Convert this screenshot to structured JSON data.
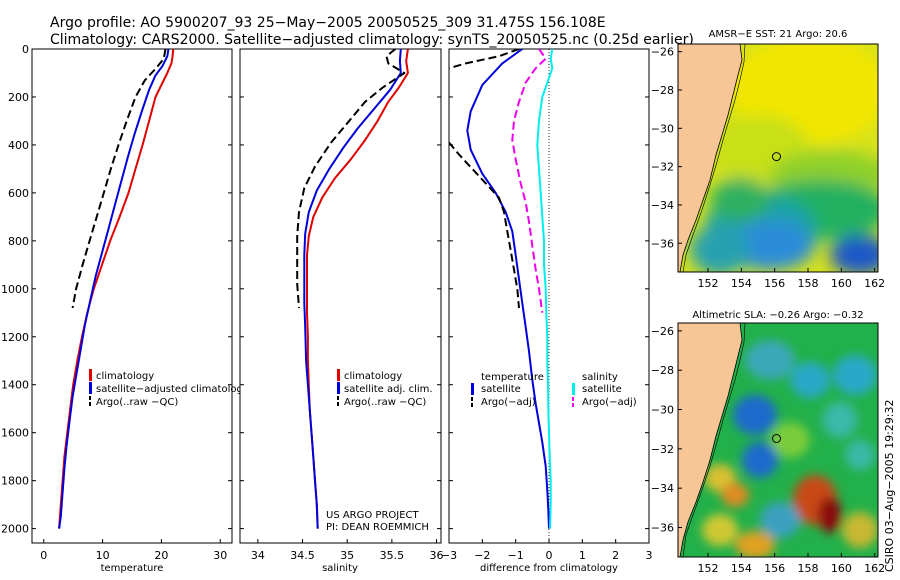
{
  "header": {
    "line1": "Argo profile: AO 5900207_93 25−May−2005 20050525_309 31.475S 156.108E",
    "line2": "Climatology: CARS2000. Satellite−adjusted climatology: synTS_20050525.nc (0.25d earlier)"
  },
  "side_note": "CSIRO 03−Aug−2005 19:29:32",
  "credit": {
    "line1": "US ARGO PROJECT",
    "line2": "PI: DEAN ROEMMICH"
  },
  "colors": {
    "red": "#e00000",
    "blue": "#0000dd",
    "black": "#000000",
    "cyan": "#00eeee",
    "magenta": "#ee00ee",
    "land": "#f8c597"
  },
  "chart_data": [
    {
      "type": "line",
      "id": "temp",
      "xlabel": "temperature",
      "xlim": [
        -2,
        32
      ],
      "xticks": [
        0,
        10,
        20,
        30
      ],
      "ylim": [
        2060,
        0
      ],
      "yticks": [
        0,
        200,
        400,
        600,
        800,
        1000,
        1200,
        1400,
        1600,
        1800,
        2000
      ],
      "legend": [
        "climatology",
        "satellite−adjusted climatology",
        "Argo(..raw −QC)"
      ],
      "series": [
        {
          "name": "climatology",
          "color": "red",
          "dash": "",
          "points": [
            [
              22.0,
              0
            ],
            [
              21.9,
              30
            ],
            [
              21.7,
              60
            ],
            [
              21.0,
              100
            ],
            [
              20.0,
              150
            ],
            [
              19.0,
              200
            ],
            [
              17.9,
              300
            ],
            [
              16.8,
              400
            ],
            [
              15.6,
              500
            ],
            [
              14.4,
              600
            ],
            [
              12.9,
              700
            ],
            [
              11.3,
              800
            ],
            [
              9.9,
              900
            ],
            [
              8.5,
              1000
            ],
            [
              7.4,
              1100
            ],
            [
              6.5,
              1200
            ],
            [
              5.7,
              1300
            ],
            [
              5.0,
              1400
            ],
            [
              4.5,
              1500
            ],
            [
              4.0,
              1600
            ],
            [
              3.5,
              1700
            ],
            [
              3.2,
              1800
            ],
            [
              2.9,
              1900
            ],
            [
              2.6,
              2000
            ]
          ]
        },
        {
          "name": "satellite-adjusted climatology",
          "color": "blue",
          "dash": "",
          "points": [
            [
              21.2,
              0
            ],
            [
              21.0,
              30
            ],
            [
              20.2,
              70
            ],
            [
              19.0,
              110
            ],
            [
              17.9,
              170
            ],
            [
              16.8,
              250
            ],
            [
              15.5,
              350
            ],
            [
              14.3,
              450
            ],
            [
              13.2,
              550
            ],
            [
              12.1,
              650
            ],
            [
              11.0,
              750
            ],
            [
              9.9,
              850
            ],
            [
              8.8,
              950
            ],
            [
              7.9,
              1050
            ],
            [
              7.0,
              1150
            ],
            [
              6.3,
              1250
            ],
            [
              5.6,
              1350
            ],
            [
              4.9,
              1450
            ],
            [
              4.4,
              1550
            ],
            [
              3.9,
              1650
            ],
            [
              3.5,
              1750
            ],
            [
              3.2,
              1850
            ],
            [
              2.9,
              1950
            ],
            [
              2.6,
              2000
            ]
          ]
        },
        {
          "name": "Argo(..raw -QC)",
          "color": "black",
          "dash": "8,4",
          "points": [
            [
              20.7,
              0
            ],
            [
              20.4,
              40
            ],
            [
              19.1,
              80
            ],
            [
              17.2,
              130
            ],
            [
              15.6,
              200
            ],
            [
              14.1,
              300
            ],
            [
              12.7,
              400
            ],
            [
              11.4,
              500
            ],
            [
              10.2,
              600
            ],
            [
              9.0,
              700
            ],
            [
              7.8,
              800
            ],
            [
              6.6,
              900
            ],
            [
              5.5,
              1000
            ],
            [
              4.9,
              1080
            ]
          ]
        }
      ]
    },
    {
      "type": "line",
      "id": "sal",
      "xlabel": "salinity",
      "xlim": [
        33.8,
        36.05
      ],
      "xticks": [
        34,
        34.5,
        35,
        35.5,
        36
      ],
      "xticklabels": [
        "34",
        "34.5",
        "35",
        "35.5",
        "36"
      ],
      "ylim": [
        2060,
        0
      ],
      "legend": [
        "climatology",
        "satellite adj. clim.",
        "Argo(..raw −QC)"
      ],
      "series": [
        {
          "name": "climatology",
          "color": "red",
          "dash": "",
          "points": [
            [
              35.68,
              0
            ],
            [
              35.66,
              50
            ],
            [
              35.68,
              100
            ],
            [
              35.58,
              160
            ],
            [
              35.46,
              220
            ],
            [
              35.34,
              300
            ],
            [
              35.2,
              380
            ],
            [
              35.04,
              460
            ],
            [
              34.86,
              540
            ],
            [
              34.72,
              620
            ],
            [
              34.62,
              700
            ],
            [
              34.57,
              780
            ],
            [
              34.55,
              860
            ],
            [
              34.55,
              940
            ],
            [
              34.55,
              1000
            ],
            [
              34.55,
              1100
            ],
            [
              34.56,
              1200
            ],
            [
              34.56,
              1300
            ],
            [
              34.57,
              1400
            ],
            [
              34.58,
              1500
            ],
            [
              34.6,
              1600
            ],
            [
              34.62,
              1700
            ],
            [
              34.64,
              1800
            ],
            [
              34.66,
              1900
            ],
            [
              34.67,
              2000
            ]
          ]
        },
        {
          "name": "satellite adj. clim.",
          "color": "blue",
          "dash": "",
          "points": [
            [
              35.6,
              0
            ],
            [
              35.59,
              50
            ],
            [
              35.6,
              100
            ],
            [
              35.48,
              170
            ],
            [
              35.3,
              250
            ],
            [
              35.12,
              330
            ],
            [
              34.96,
              410
            ],
            [
              34.8,
              500
            ],
            [
              34.66,
              590
            ],
            [
              34.57,
              680
            ],
            [
              34.53,
              770
            ],
            [
              34.52,
              860
            ],
            [
              34.52,
              960
            ],
            [
              34.52,
              1060
            ],
            [
              34.53,
              1160
            ],
            [
              34.54,
              1300
            ],
            [
              34.56,
              1400
            ],
            [
              34.58,
              1500
            ],
            [
              34.6,
              1600
            ],
            [
              34.62,
              1700
            ],
            [
              34.64,
              1800
            ],
            [
              34.66,
              1900
            ],
            [
              34.67,
              2000
            ]
          ]
        },
        {
          "name": "Argo(..raw -QC)",
          "color": "black",
          "dash": "8,4",
          "points": [
            [
              35.54,
              0
            ],
            [
              35.44,
              30
            ],
            [
              35.46,
              60
            ],
            [
              35.64,
              100
            ],
            [
              35.4,
              160
            ],
            [
              35.2,
              220
            ],
            [
              35.0,
              310
            ],
            [
              34.82,
              390
            ],
            [
              34.64,
              490
            ],
            [
              34.52,
              580
            ],
            [
              34.46,
              680
            ],
            [
              34.44,
              780
            ],
            [
              34.44,
              880
            ],
            [
              34.44,
              980
            ],
            [
              34.46,
              1080
            ]
          ]
        }
      ]
    },
    {
      "type": "line",
      "id": "diff",
      "xlabel": "difference from climatology",
      "xlim": [
        -3,
        3
      ],
      "xticks": [
        -3,
        -2,
        -1,
        0,
        1,
        2,
        3
      ],
      "xticklabels": [
        "−3",
        "−2",
        "−1",
        "0",
        "1",
        "2",
        "3"
      ],
      "ylim": [
        2060,
        0
      ],
      "legend_left": [
        "temperature",
        "satellite",
        "Argo(−adj)"
      ],
      "legend_right": [
        "salinity",
        "satellite",
        "Argo(−adj)"
      ],
      "series": [
        {
          "name": "temperature satellite",
          "color": "blue",
          "dash": "",
          "points": [
            [
              -0.8,
              0
            ],
            [
              -1.4,
              60
            ],
            [
              -2.0,
              150
            ],
            [
              -2.35,
              260
            ],
            [
              -2.45,
              340
            ],
            [
              -2.35,
              420
            ],
            [
              -2.0,
              520
            ],
            [
              -1.6,
              600
            ],
            [
              -1.3,
              680
            ],
            [
              -1.1,
              760
            ],
            [
              -1.0,
              860
            ],
            [
              -0.9,
              960
            ],
            [
              -0.8,
              1060
            ],
            [
              -0.7,
              1160
            ],
            [
              -0.6,
              1260
            ],
            [
              -0.5,
              1380
            ],
            [
              -0.4,
              1480
            ],
            [
              -0.3,
              1560
            ],
            [
              -0.2,
              1640
            ],
            [
              -0.1,
              1740
            ],
            [
              -0.05,
              1840
            ],
            [
              -0.02,
              1920
            ],
            [
              0,
              2000
            ]
          ]
        },
        {
          "name": "temperature Argo(-adj)",
          "color": "black",
          "dash": "8,4",
          "points": [
            [
              -0.9,
              0
            ],
            [
              -1.5,
              30
            ],
            [
              -2.5,
              60
            ],
            [
              -3.0,
              80
            ]
          ]
        },
        {
          "name": "temperature Argo(-adj) deep",
          "color": "black",
          "dash": "8,4",
          "points": [
            [
              -3.0,
              390
            ],
            [
              -2.7,
              440
            ],
            [
              -2.3,
              500
            ],
            [
              -1.9,
              560
            ],
            [
              -1.5,
              620
            ],
            [
              -1.35,
              680
            ],
            [
              -1.25,
              760
            ],
            [
              -1.15,
              840
            ],
            [
              -1.05,
              920
            ],
            [
              -0.95,
              1000
            ],
            [
              -0.9,
              1080
            ]
          ]
        },
        {
          "name": "salinity satellite",
          "color": "cyan",
          "dash": "",
          "points": [
            [
              0.1,
              0
            ],
            [
              0.05,
              40
            ],
            [
              0.1,
              80
            ],
            [
              0,
              120
            ],
            [
              -0.2,
              200
            ],
            [
              -0.3,
              300
            ],
            [
              -0.35,
              400
            ],
            [
              -0.3,
              500
            ],
            [
              -0.25,
              600
            ],
            [
              -0.2,
              700
            ],
            [
              -0.15,
              800
            ],
            [
              -0.15,
              900
            ],
            [
              -0.1,
              1000
            ],
            [
              -0.08,
              1100
            ],
            [
              -0.05,
              1200
            ],
            [
              -0.05,
              1300
            ],
            [
              -0.03,
              1400
            ],
            [
              -0.02,
              1500
            ],
            [
              0,
              1600
            ],
            [
              0.02,
              1700
            ],
            [
              0.05,
              1800
            ],
            [
              0.05,
              1900
            ],
            [
              0.03,
              2000
            ]
          ]
        },
        {
          "name": "salinity Argo(-adj)",
          "color": "magenta",
          "dash": "8,4",
          "points": [
            [
              -0.3,
              0
            ],
            [
              -0.1,
              40
            ],
            [
              -0.4,
              80
            ],
            [
              -0.7,
              140
            ],
            [
              -0.9,
              220
            ],
            [
              -1.05,
              300
            ],
            [
              -1.1,
              380
            ],
            [
              -1.0,
              460
            ],
            [
              -0.85,
              560
            ],
            [
              -0.7,
              640
            ],
            [
              -0.6,
              720
            ],
            [
              -0.5,
              820
            ],
            [
              -0.4,
              920
            ],
            [
              -0.3,
              1000
            ],
            [
              -0.2,
              1100
            ]
          ]
        }
      ]
    },
    {
      "type": "heatmap",
      "id": "sst",
      "title": "AMSR−E SST: 21 Argo: 20.6",
      "xticks": [
        152,
        154,
        156,
        158,
        160,
        162
      ],
      "yticks": [
        -26,
        -28,
        -30,
        -32,
        -34,
        -36
      ],
      "lon": [
        150.2,
        162.2
      ],
      "lat": [
        -25.6,
        -37.5
      ],
      "marker": [
        156.108,
        -31.475
      ]
    },
    {
      "type": "heatmap",
      "id": "sla",
      "title": "Altimetric SLA: −0.26 Argo: −0.32",
      "xticks": [
        152,
        154,
        156,
        158,
        160,
        162
      ],
      "yticks": [
        -26,
        -28,
        -30,
        -32,
        -34,
        -36
      ],
      "lon": [
        150.2,
        162.2
      ],
      "lat": [
        -25.6,
        -37.5
      ],
      "marker": [
        156.108,
        -31.475
      ]
    }
  ]
}
